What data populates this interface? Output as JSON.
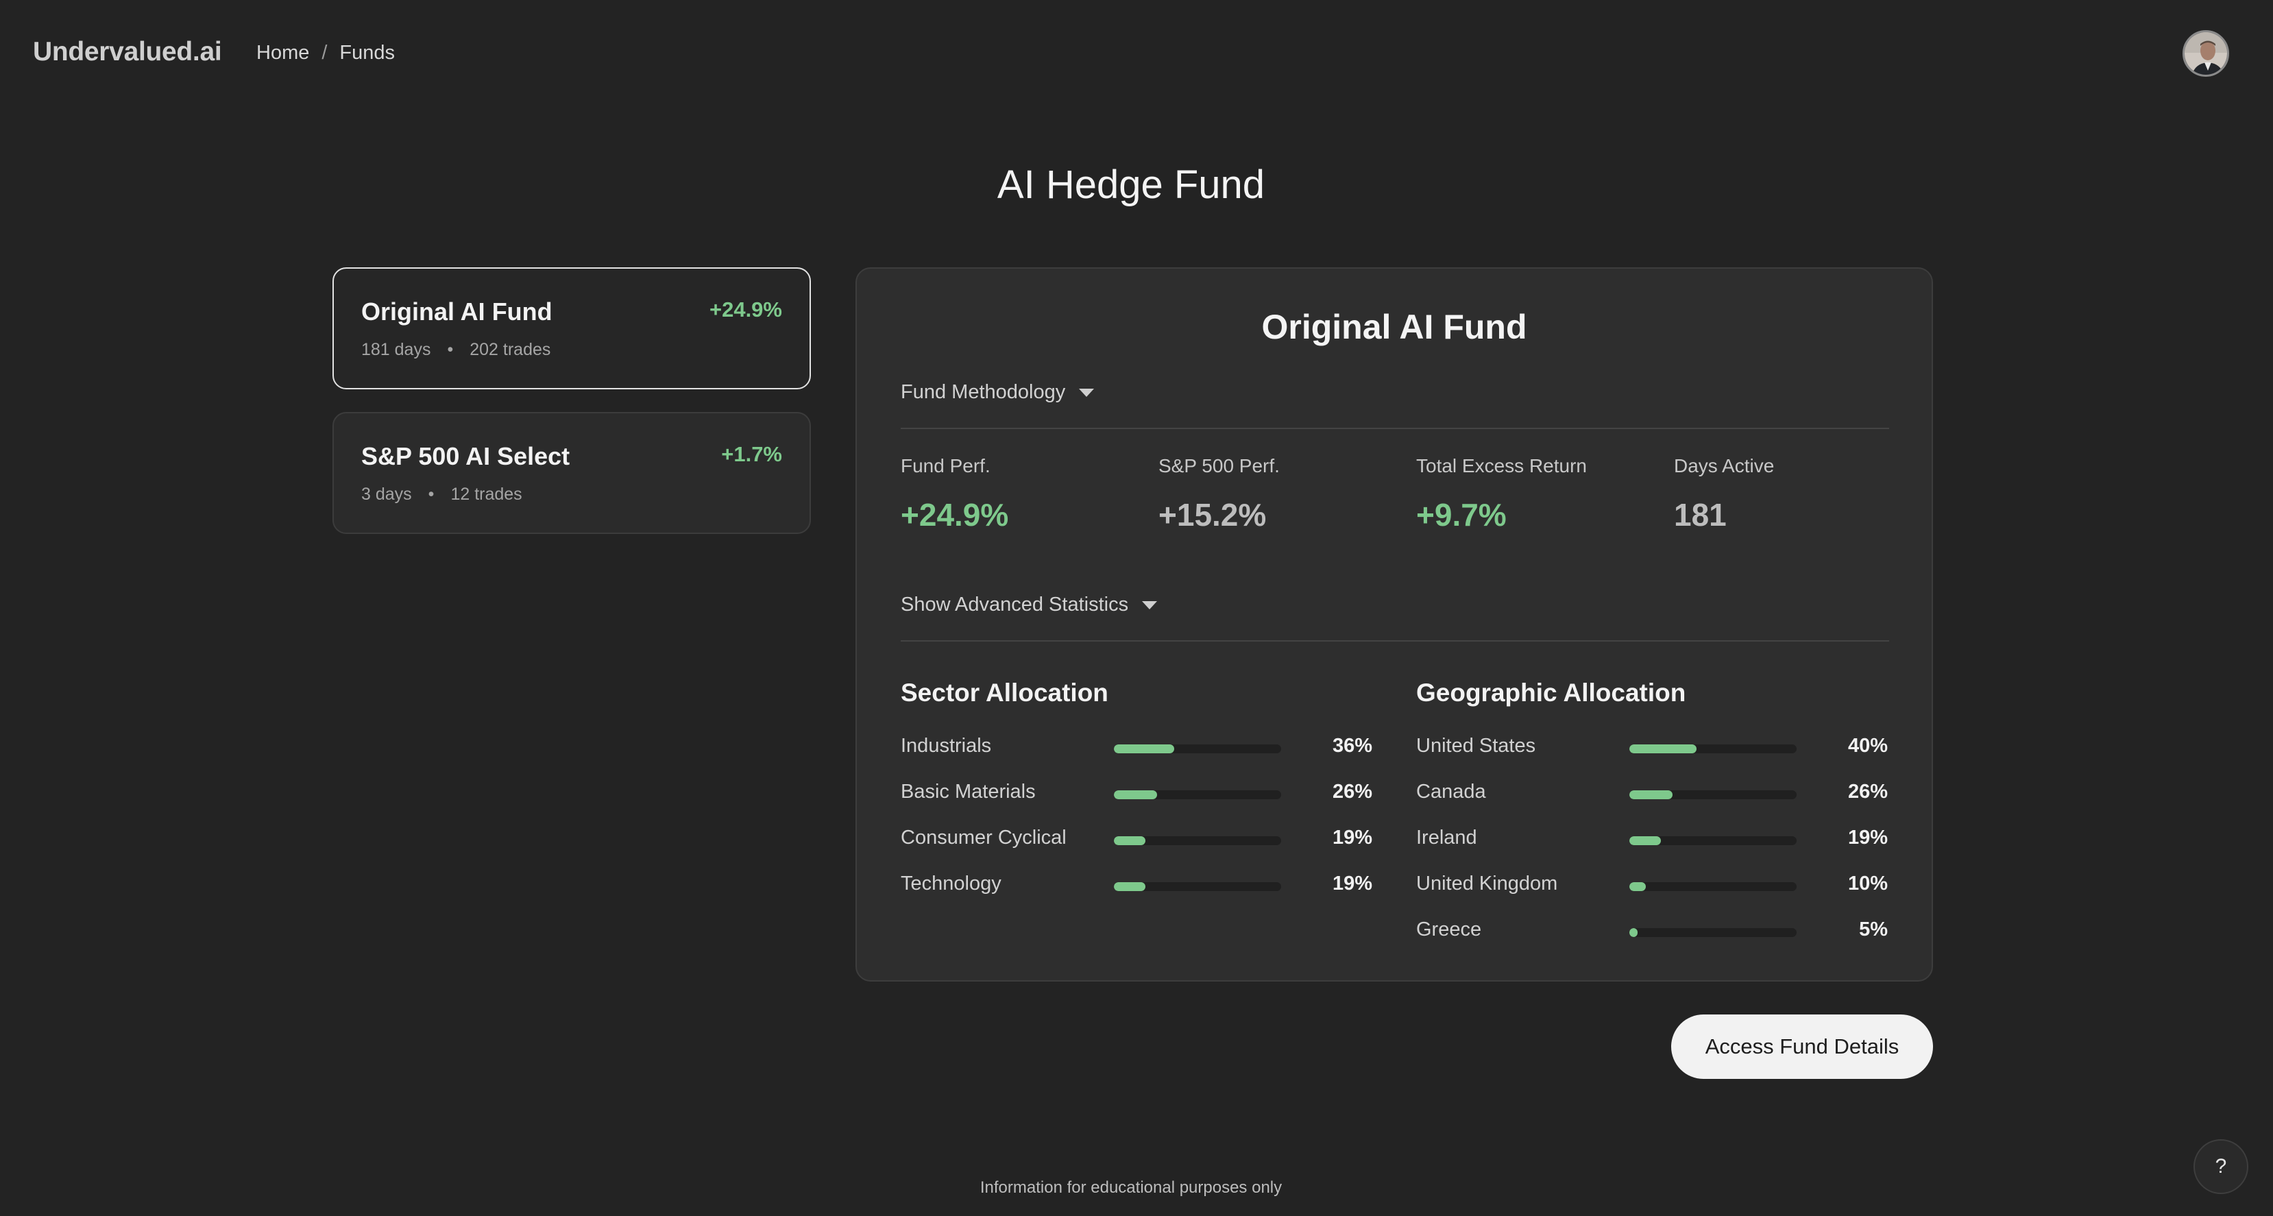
{
  "header": {
    "logo": "Undervalued.ai",
    "breadcrumb": {
      "home": "Home",
      "separator": "/",
      "current": "Funds"
    },
    "avatar_icon": "user-avatar-photo"
  },
  "page_title": "AI Hedge Fund",
  "funds": [
    {
      "name": "Original AI Fund",
      "perf": "+24.9%",
      "days": "181 days",
      "dot": "•",
      "trades": "202 trades",
      "selected": true
    },
    {
      "name": "S&P 500 AI Select",
      "perf": "+1.7%",
      "days": "3 days",
      "dot": "•",
      "trades": "12 trades",
      "selected": false
    }
  ],
  "panel": {
    "title": "Original AI Fund",
    "methodology_label": "Fund Methodology",
    "advanced_label": "Show Advanced Statistics",
    "stats": [
      {
        "label": "Fund Perf.",
        "value": "+24.9%"
      },
      {
        "label": "S&P 500 Perf.",
        "value": "+15.2%"
      },
      {
        "label": "Total Excess Return",
        "value": "+9.7%"
      },
      {
        "label": "Days Active",
        "value": "181"
      }
    ],
    "sector": {
      "title": "Sector Allocation",
      "items": [
        {
          "label": "Industrials",
          "value": "36%",
          "fraction": 0.36
        },
        {
          "label": "Basic Materials",
          "value": "26%",
          "fraction": 0.26
        },
        {
          "label": "Consumer Cyclical",
          "value": "19%",
          "fraction": 0.19
        },
        {
          "label": "Technology",
          "value": "19%",
          "fraction": 0.19
        }
      ]
    },
    "geographic": {
      "title": "Geographic Allocation",
      "items": [
        {
          "label": "United States",
          "value": "40%",
          "fraction": 0.4
        },
        {
          "label": "Canada",
          "value": "26%",
          "fraction": 0.26
        },
        {
          "label": "Ireland",
          "value": "19%",
          "fraction": 0.19
        },
        {
          "label": "United Kingdom",
          "value": "10%",
          "fraction": 0.1
        },
        {
          "label": "Greece",
          "value": "5%",
          "fraction": 0.05
        }
      ]
    }
  },
  "cta_label": "Access Fund Details",
  "footer": "Information for educational purposes only",
  "help_label": "?",
  "colors": {
    "background": "#232323",
    "positive": "#7ec98c",
    "panel": "#2e2e2e"
  }
}
